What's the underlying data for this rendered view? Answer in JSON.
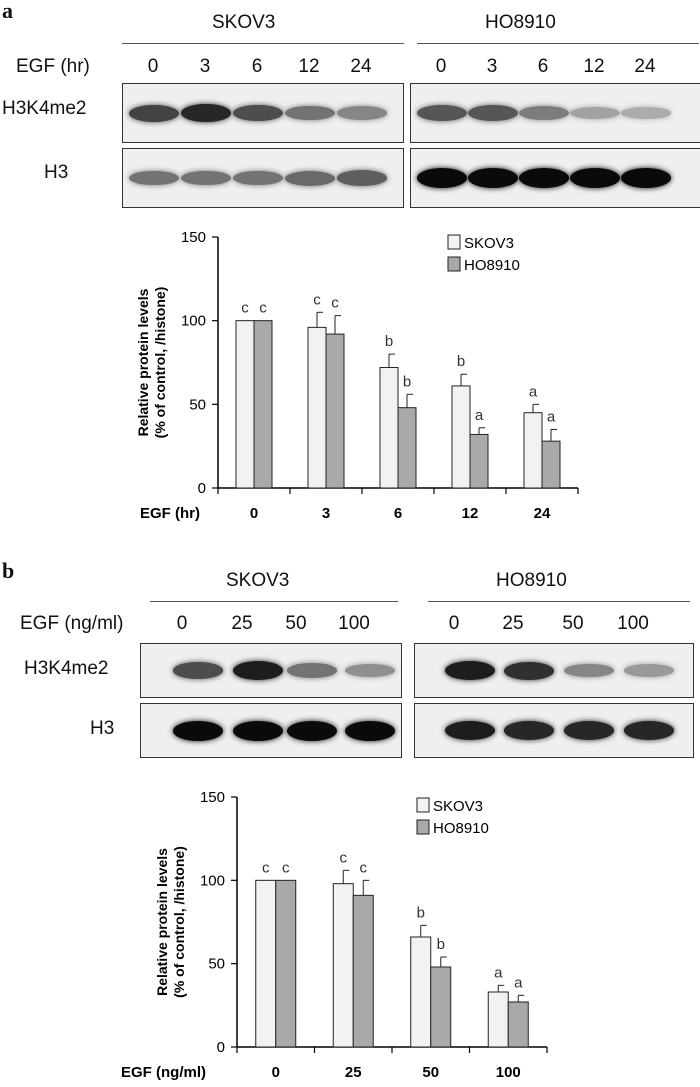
{
  "panels": [
    {
      "letter": "a",
      "cell_lines": [
        "SKOV3",
        "HO8910"
      ],
      "condition_label": "EGF (hr)",
      "lanes": [
        "0",
        "3",
        "6",
        "12",
        "24"
      ],
      "blot_rows": [
        "H3K4me2",
        "H3"
      ],
      "bands": {
        "SKOV3": {
          "H3K4me2": [
            0.7,
            0.85,
            0.65,
            0.45,
            0.35
          ],
          "H3": [
            0.45,
            0.45,
            0.45,
            0.5,
            0.55
          ]
        },
        "HO8910": {
          "H3K4me2": [
            0.6,
            0.6,
            0.4,
            0.2,
            0.15
          ],
          "H3": [
            1.0,
            1.0,
            1.0,
            1.0,
            1.0
          ]
        }
      },
      "chart_data": {
        "type": "bar",
        "categories": [
          "0",
          "3",
          "6",
          "12",
          "24"
        ],
        "xlabel": "EGF (hr)",
        "ylabel_line1": "Relative protein levels",
        "ylabel_line2": "(% of control, /histone)",
        "ylim": [
          0,
          150
        ],
        "yticks": [
          "0",
          "50",
          "100",
          "150"
        ],
        "legend_position": "top-right",
        "series": [
          {
            "name": "SKOV3",
            "color": "#f2f2f2",
            "values": [
              100,
              96,
              72,
              61,
              45
            ],
            "errors": [
              0,
              9,
              8,
              7,
              5
            ],
            "labels": [
              "c",
              "c",
              "b",
              "b",
              "a"
            ]
          },
          {
            "name": "HO8910",
            "color": "#a9a9a9",
            "values": [
              100,
              92,
              48,
              32,
              28
            ],
            "errors": [
              0,
              11,
              8,
              4,
              7
            ],
            "labels": [
              "c",
              "c",
              "b",
              "a",
              "a"
            ]
          }
        ]
      }
    },
    {
      "letter": "b",
      "cell_lines": [
        "SKOV3",
        "HO8910"
      ],
      "condition_label": "EGF (ng/ml)",
      "lanes": [
        "0",
        "25",
        "50",
        "100"
      ],
      "blot_rows": [
        "H3K4me2",
        "H3"
      ],
      "bands": {
        "SKOV3": {
          "H3K4me2": [
            0.65,
            0.9,
            0.45,
            0.3
          ],
          "H3": [
            1.0,
            1.0,
            1.0,
            1.0
          ]
        },
        "HO8910": {
          "H3K4me2": [
            0.9,
            0.8,
            0.35,
            0.25
          ],
          "H3": [
            0.9,
            0.85,
            0.85,
            0.85
          ]
        }
      },
      "chart_data": {
        "type": "bar",
        "categories": [
          "0",
          "25",
          "50",
          "100"
        ],
        "xlabel": "EGF (ng/ml)",
        "ylabel_line1": "Relative protein levels",
        "ylabel_line2": "(% of control, /histone)",
        "ylim": [
          0,
          150
        ],
        "yticks": [
          "0",
          "50",
          "100",
          "150"
        ],
        "legend_position": "top-right",
        "series": [
          {
            "name": "SKOV3",
            "color": "#f2f2f2",
            "values": [
              100,
              98,
              66,
              33
            ],
            "errors": [
              0,
              8,
              7,
              4
            ],
            "labels": [
              "c",
              "c",
              "b",
              "a"
            ]
          },
          {
            "name": "HO8910",
            "color": "#a9a9a9",
            "values": [
              100,
              91,
              48,
              27
            ],
            "errors": [
              0,
              9,
              6,
              4
            ],
            "labels": [
              "c",
              "c",
              "b",
              "a"
            ]
          }
        ]
      }
    }
  ]
}
